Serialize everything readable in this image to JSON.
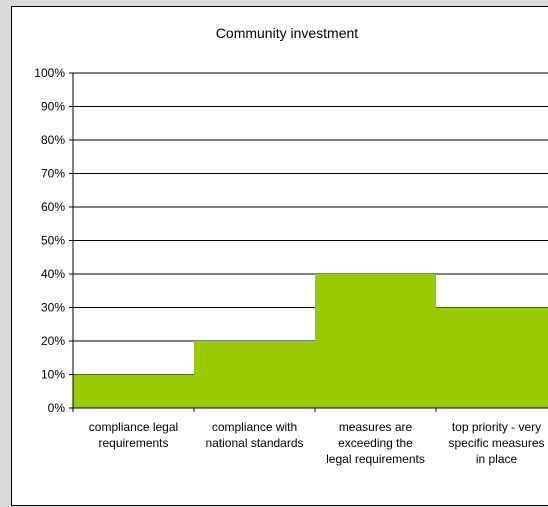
{
  "chart_data": {
    "type": "bar",
    "title": "Community investment",
    "categories": [
      [
        "compliance legal",
        "requirements"
      ],
      [
        "compliance with",
        "national standards"
      ],
      [
        "measures are",
        "exceeding the",
        "legal requirements"
      ],
      [
        "top priority - very",
        "specific measures",
        "in place"
      ]
    ],
    "values": [
      10,
      20,
      40,
      30
    ],
    "ylim": [
      0,
      100
    ],
    "yticks": [
      "0%",
      "10%",
      "20%",
      "30%",
      "40%",
      "50%",
      "60%",
      "70%",
      "80%",
      "90%",
      "100%"
    ],
    "grid": true,
    "legend": "none",
    "bar_color": "#99cc00",
    "gridline_color": "#000000"
  }
}
